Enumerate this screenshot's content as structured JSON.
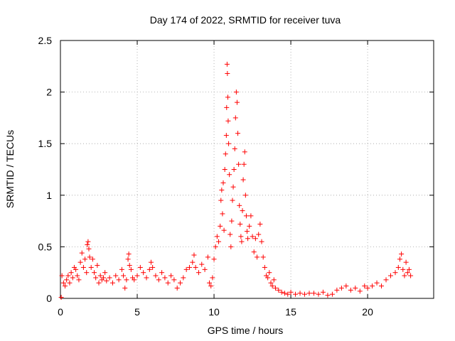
{
  "chart_data": {
    "type": "scatter",
    "title": "Day 174 of 2022, SRMTID for receiver tuva",
    "xlabel": "GPS time / hours",
    "ylabel": "SRMTID / TECUs",
    "xlim": [
      0,
      24.3
    ],
    "ylim": [
      0,
      2.5
    ],
    "xticks": [
      0,
      5,
      10,
      15,
      20
    ],
    "xtick_labels": [
      "0",
      "5",
      "10",
      "15",
      "20"
    ],
    "yticks": [
      0,
      0.5,
      1,
      1.5,
      2,
      2.5
    ],
    "ytick_labels": [
      "0",
      "0.5",
      "1",
      "1.5",
      "2",
      "2.5"
    ],
    "grid": true,
    "marker": "+",
    "color": "#ff0000",
    "series": [
      {
        "name": "tuva",
        "points": [
          [
            0.05,
            0.01
          ],
          [
            0.1,
            0.22
          ],
          [
            0.2,
            0.15
          ],
          [
            0.3,
            0.12
          ],
          [
            0.4,
            0.18
          ],
          [
            0.5,
            0.22
          ],
          [
            0.6,
            0.15
          ],
          [
            0.7,
            0.25
          ],
          [
            0.8,
            0.2
          ],
          [
            0.9,
            0.3
          ],
          [
            1.0,
            0.28
          ],
          [
            1.1,
            0.22
          ],
          [
            1.2,
            0.18
          ],
          [
            1.3,
            0.35
          ],
          [
            1.4,
            0.44
          ],
          [
            1.5,
            0.3
          ],
          [
            1.6,
            0.38
          ],
          [
            1.7,
            0.25
          ],
          [
            1.75,
            0.52
          ],
          [
            1.8,
            0.55
          ],
          [
            1.85,
            0.48
          ],
          [
            1.9,
            0.4
          ],
          [
            2.0,
            0.3
          ],
          [
            2.1,
            0.38
          ],
          [
            2.2,
            0.25
          ],
          [
            2.3,
            0.2
          ],
          [
            2.4,
            0.32
          ],
          [
            2.5,
            0.15
          ],
          [
            2.6,
            0.22
          ],
          [
            2.7,
            0.18
          ],
          [
            2.8,
            0.2
          ],
          [
            2.9,
            0.25
          ],
          [
            3.0,
            0.17
          ],
          [
            3.2,
            0.2
          ],
          [
            3.4,
            0.15
          ],
          [
            3.6,
            0.22
          ],
          [
            3.8,
            0.18
          ],
          [
            4.0,
            0.28
          ],
          [
            4.1,
            0.22
          ],
          [
            4.2,
            0.1
          ],
          [
            4.3,
            0.18
          ],
          [
            4.4,
            0.38
          ],
          [
            4.45,
            0.43
          ],
          [
            4.5,
            0.32
          ],
          [
            4.6,
            0.28
          ],
          [
            4.7,
            0.2
          ],
          [
            4.8,
            0.18
          ],
          [
            5.0,
            0.22
          ],
          [
            5.2,
            0.3
          ],
          [
            5.4,
            0.25
          ],
          [
            5.6,
            0.2
          ],
          [
            5.8,
            0.28
          ],
          [
            5.9,
            0.35
          ],
          [
            6.0,
            0.3
          ],
          [
            6.2,
            0.22
          ],
          [
            6.4,
            0.18
          ],
          [
            6.6,
            0.25
          ],
          [
            6.8,
            0.2
          ],
          [
            7.0,
            0.15
          ],
          [
            7.2,
            0.22
          ],
          [
            7.4,
            0.18
          ],
          [
            7.6,
            0.1
          ],
          [
            7.8,
            0.15
          ],
          [
            8.0,
            0.2
          ],
          [
            8.2,
            0.28
          ],
          [
            8.4,
            0.3
          ],
          [
            8.6,
            0.35
          ],
          [
            8.7,
            0.42
          ],
          [
            8.8,
            0.3
          ],
          [
            9.0,
            0.25
          ],
          [
            9.2,
            0.33
          ],
          [
            9.4,
            0.28
          ],
          [
            9.6,
            0.4
          ],
          [
            9.7,
            0.15
          ],
          [
            9.8,
            0.12
          ],
          [
            9.9,
            0.2
          ],
          [
            10.0,
            0.38
          ],
          [
            10.1,
            0.5
          ],
          [
            10.2,
            0.6
          ],
          [
            10.3,
            0.55
          ],
          [
            10.4,
            0.7
          ],
          [
            10.45,
            0.95
          ],
          [
            10.5,
            1.05
          ],
          [
            10.55,
            0.82
          ],
          [
            10.6,
            1.12
          ],
          [
            10.65,
            0.66
          ],
          [
            10.7,
            1.25
          ],
          [
            10.75,
            1.4
          ],
          [
            10.8,
            1.58
          ],
          [
            10.82,
            1.85
          ],
          [
            10.85,
            2.27
          ],
          [
            10.87,
            2.18
          ],
          [
            10.9,
            1.95
          ],
          [
            10.92,
            1.72
          ],
          [
            10.95,
            1.5
          ],
          [
            11.0,
            1.2
          ],
          [
            11.05,
            0.62
          ],
          [
            11.1,
            0.5
          ],
          [
            11.15,
            0.75
          ],
          [
            11.2,
            0.95
          ],
          [
            11.25,
            1.08
          ],
          [
            11.3,
            1.25
          ],
          [
            11.35,
            1.45
          ],
          [
            11.4,
            1.75
          ],
          [
            11.45,
            2.0
          ],
          [
            11.5,
            1.9
          ],
          [
            11.55,
            1.6
          ],
          [
            11.6,
            1.3
          ],
          [
            11.65,
            0.9
          ],
          [
            11.7,
            0.72
          ],
          [
            11.75,
            0.6
          ],
          [
            11.8,
            0.55
          ],
          [
            11.85,
            0.85
          ],
          [
            11.9,
            1.15
          ],
          [
            11.95,
            1.3
          ],
          [
            12.0,
            1.42
          ],
          [
            12.05,
            1.0
          ],
          [
            12.1,
            0.8
          ],
          [
            12.15,
            0.65
          ],
          [
            12.2,
            0.58
          ],
          [
            12.3,
            0.7
          ],
          [
            12.4,
            0.8
          ],
          [
            12.5,
            0.6
          ],
          [
            12.6,
            0.45
          ],
          [
            12.7,
            0.58
          ],
          [
            12.8,
            0.4
          ],
          [
            12.9,
            0.62
          ],
          [
            13.0,
            0.72
          ],
          [
            13.1,
            0.55
          ],
          [
            13.2,
            0.4
          ],
          [
            13.3,
            0.3
          ],
          [
            13.4,
            0.22
          ],
          [
            13.5,
            0.2
          ],
          [
            13.6,
            0.25
          ],
          [
            13.7,
            0.15
          ],
          [
            13.8,
            0.12
          ],
          [
            13.9,
            0.18
          ],
          [
            14.0,
            0.1
          ],
          [
            14.2,
            0.08
          ],
          [
            14.4,
            0.06
          ],
          [
            14.6,
            0.05
          ],
          [
            14.8,
            0.04
          ],
          [
            15.0,
            0.06
          ],
          [
            15.3,
            0.04
          ],
          [
            15.6,
            0.05
          ],
          [
            15.9,
            0.04
          ],
          [
            16.2,
            0.05
          ],
          [
            16.5,
            0.05
          ],
          [
            16.8,
            0.04
          ],
          [
            17.1,
            0.06
          ],
          [
            17.4,
            0.03
          ],
          [
            17.7,
            0.04
          ],
          [
            18.0,
            0.08
          ],
          [
            18.3,
            0.1
          ],
          [
            18.6,
            0.12
          ],
          [
            18.9,
            0.08
          ],
          [
            19.2,
            0.1
          ],
          [
            19.5,
            0.07
          ],
          [
            19.8,
            0.12
          ],
          [
            20.0,
            0.1
          ],
          [
            20.3,
            0.12
          ],
          [
            20.6,
            0.15
          ],
          [
            20.9,
            0.12
          ],
          [
            21.2,
            0.18
          ],
          [
            21.5,
            0.22
          ],
          [
            21.8,
            0.25
          ],
          [
            22.0,
            0.3
          ],
          [
            22.1,
            0.38
          ],
          [
            22.2,
            0.43
          ],
          [
            22.3,
            0.28
          ],
          [
            22.4,
            0.22
          ],
          [
            22.5,
            0.35
          ],
          [
            22.6,
            0.25
          ],
          [
            22.7,
            0.28
          ],
          [
            22.8,
            0.22
          ]
        ]
      }
    ]
  }
}
